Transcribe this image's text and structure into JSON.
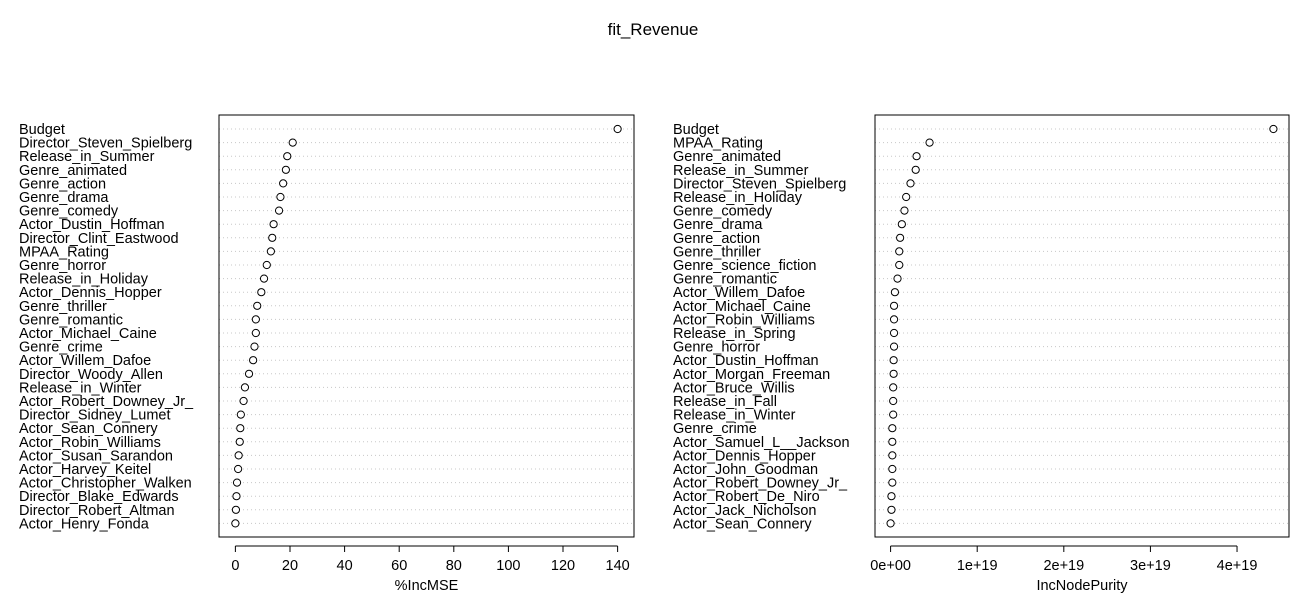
{
  "title": "fit_Revenue",
  "chart_data": [
    {
      "type": "scatter",
      "style": "dotchart",
      "xlabel": "%IncMSE",
      "ylabel": "",
      "xlim": [
        -6,
        146
      ],
      "xticks": [
        0,
        20,
        40,
        60,
        80,
        100,
        120,
        140
      ],
      "xtick_labels": [
        "0",
        "20",
        "40",
        "60",
        "80",
        "100",
        "120",
        "140"
      ],
      "grid": "horizontal dotted",
      "labels": [
        "Budget",
        "Director_Steven_Spielberg",
        "Release_in_Summer",
        "Genre_animated",
        "Genre_action",
        "Genre_drama",
        "Genre_comedy",
        "Actor_Dustin_Hoffman",
        "Director_Clint_Eastwood",
        "MPAA_Rating",
        "Genre_horror",
        "Release_in_Holiday",
        "Actor_Dennis_Hopper",
        "Genre_thriller",
        "Genre_romantic",
        "Actor_Michael_Caine",
        "Genre_crime",
        "Actor_Willem_Dafoe",
        "Director_Woody_Allen",
        "Release_in_Winter",
        "Actor_Robert_Downey_Jr_",
        "Director_Sidney_Lumet",
        "Actor_Sean_Connery",
        "Actor_Robin_Williams",
        "Actor_Susan_Sarandon",
        "Actor_Harvey_Keitel",
        "Actor_Christopher_Walken",
        "Director_Blake_Edwards",
        "Director_Robert_Altman",
        "Actor_Henry_Fonda"
      ],
      "values": [
        140,
        21,
        19,
        18.5,
        17.5,
        16.5,
        16,
        14,
        13.5,
        13,
        11.5,
        10.5,
        9.5,
        8,
        7.5,
        7.5,
        7,
        6.5,
        5,
        3.5,
        3,
        2,
        1.8,
        1.6,
        1.2,
        1,
        0.6,
        0.4,
        0.2,
        0
      ]
    },
    {
      "type": "scatter",
      "style": "dotchart",
      "xlabel": "IncNodePurity",
      "ylabel": "",
      "xlim": [
        -1.8e+18,
        4.6e+19
      ],
      "xticks": [
        0,
        1e+19,
        2e+19,
        3e+19,
        4e+19
      ],
      "xtick_labels": [
        "0e+00",
        "1e+19",
        "2e+19",
        "3e+19",
        "4e+19"
      ],
      "grid": "horizontal dotted",
      "labels": [
        "Budget",
        "MPAA_Rating",
        "Genre_animated",
        "Release_in_Summer",
        "Director_Steven_Spielberg",
        "Release_in_Holiday",
        "Genre_comedy",
        "Genre_drama",
        "Genre_action",
        "Genre_thriller",
        "Genre_science_fiction",
        "Genre_romantic",
        "Actor_Willem_Dafoe",
        "Actor_Michael_Caine",
        "Actor_Robin_Williams",
        "Release_in_Spring",
        "Genre_horror",
        "Actor_Dustin_Hoffman",
        "Actor_Morgan_Freeman",
        "Actor_Bruce_Willis",
        "Release_in_Fall",
        "Release_in_Winter",
        "Genre_crime",
        "Actor_Samuel_L__Jackson",
        "Actor_Dennis_Hopper",
        "Actor_John_Goodman",
        "Actor_Robert_Downey_Jr_",
        "Actor_Robert_De_Niro",
        "Actor_Jack_Nicholson",
        "Actor_Sean_Connery"
      ],
      "values": [
        4.42e+19,
        4.5e+18,
        3e+18,
        2.9e+18,
        2.3e+18,
        1.8e+18,
        1.6e+18,
        1.3e+18,
        1.1e+18,
        1e+18,
        1e+18,
        8e+17,
        5e+17,
        4e+17,
        4e+17,
        4e+17,
        4e+17,
        3.5e+17,
        3.5e+17,
        3e+17,
        3e+17,
        3e+17,
        2e+17,
        2e+17,
        2e+17,
        2e+17,
        2e+17,
        1e+17,
        1e+17,
        0
      ]
    }
  ]
}
